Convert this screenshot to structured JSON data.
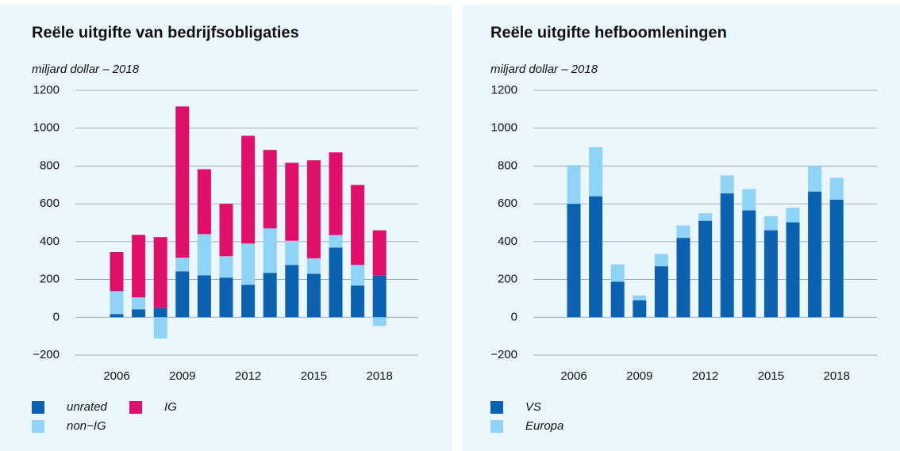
{
  "chart_data": [
    {
      "type": "stacked_bar",
      "title": "Reële uitgifte van bedrijfsobligaties",
      "subtitle": "miljard dollar – 2018",
      "categories": [
        "2006",
        null,
        null,
        "2009",
        null,
        null,
        "2012",
        null,
        null,
        "2015",
        null,
        null,
        "2018"
      ],
      "series": [
        {
          "name": "unrated",
          "color": "#0a62b0",
          "values": [
            17,
            42,
            50,
            243,
            222,
            210,
            172,
            235,
            277,
            230,
            368,
            168,
            222
          ]
        },
        {
          "name": "non−IG",
          "color": "#8fd3f7",
          "values": [
            121,
            63,
            -112,
            72,
            218,
            113,
            218,
            235,
            128,
            82,
            67,
            109,
            -46
          ]
        },
        {
          "name": "IG",
          "color": "#e0106a",
          "values": [
            207,
            331,
            374,
            800,
            343,
            277,
            570,
            415,
            412,
            518,
            437,
            423,
            238
          ]
        }
      ],
      "ylim": [
        -200,
        1200
      ],
      "yticks": [
        {
          "value": -200,
          "label": "−200"
        },
        0,
        200,
        400,
        600,
        800,
        1000,
        1200
      ],
      "grid": true
    },
    {
      "type": "stacked_bar",
      "title": "Reële uitgifte hefboomleningen",
      "subtitle": "miljard dollar – 2018",
      "categories": [
        "2006",
        null,
        null,
        "2009",
        null,
        null,
        "2012",
        null,
        null,
        "2015",
        null,
        null,
        "2018"
      ],
      "series": [
        {
          "name": "VS",
          "color": "#0a62b0",
          "values": [
            600,
            640,
            188,
            90,
            270,
            420,
            510,
            655,
            565,
            460,
            502,
            665,
            622
          ]
        },
        {
          "name": "Europa",
          "color": "#8fd3f7",
          "values": [
            205,
            260,
            92,
            25,
            65,
            65,
            40,
            95,
            113,
            75,
            78,
            135,
            116
          ]
        }
      ],
      "ylim": [
        -200,
        1200
      ],
      "yticks": [
        {
          "value": -200,
          "label": "−200"
        },
        0,
        200,
        400,
        600,
        800,
        1000,
        1200
      ],
      "grid": true
    }
  ]
}
